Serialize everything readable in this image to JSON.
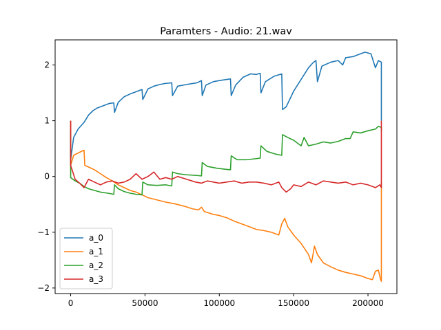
{
  "chart_data": {
    "type": "line",
    "title": "Paramters - Audio: 21.wav",
    "xlabel": "",
    "ylabel": "",
    "xlim": [
      -10450,
      219450
    ],
    "ylim": [
      -2.1,
      2.45
    ],
    "x_ticks": [
      0,
      50000,
      100000,
      150000,
      200000
    ],
    "x_tick_labels": [
      "0",
      "50000",
      "100000",
      "150000",
      "200000"
    ],
    "y_ticks": [
      -2,
      -1,
      0,
      1,
      2
    ],
    "y_tick_labels": [
      "−2",
      "−1",
      "0",
      "1",
      "2"
    ],
    "grid": false,
    "legend_position": "lower-left",
    "series": [
      {
        "name": "a_0",
        "color": "#1f77b4",
        "x": [
          0,
          0,
          2000,
          5000,
          9000,
          12000,
          15000,
          18000,
          22000,
          26000,
          29000,
          29500,
          32000,
          36000,
          40000,
          45000,
          48000,
          48500,
          52000,
          56000,
          60000,
          64000,
          68000,
          68500,
          72000,
          78000,
          85000,
          88000,
          88500,
          91000,
          96000,
          100000,
          105000,
          107500,
          108000,
          111000,
          116000,
          121000,
          125000,
          127500,
          128000,
          131000,
          137000,
          142000,
          142500,
          145000,
          150000,
          155000,
          160000,
          163000,
          165000,
          166000,
          169000,
          175000,
          180000,
          183000,
          185000,
          190000,
          195000,
          198000,
          202000,
          205000,
          207000,
          209000,
          209000
        ],
        "y": [
          1.0,
          0.3,
          0.7,
          0.85,
          0.97,
          1.1,
          1.18,
          1.23,
          1.27,
          1.31,
          1.32,
          1.15,
          1.33,
          1.43,
          1.48,
          1.53,
          1.56,
          1.38,
          1.57,
          1.62,
          1.65,
          1.67,
          1.68,
          1.45,
          1.62,
          1.65,
          1.68,
          1.72,
          1.45,
          1.64,
          1.7,
          1.72,
          1.74,
          1.75,
          1.45,
          1.64,
          1.78,
          1.84,
          1.83,
          1.85,
          1.5,
          1.7,
          1.8,
          1.84,
          1.2,
          1.25,
          1.53,
          1.74,
          1.95,
          2.04,
          2.08,
          1.7,
          1.98,
          2.05,
          2.08,
          2.0,
          2.13,
          2.15,
          2.2,
          2.23,
          2.2,
          1.95,
          2.08,
          2.05,
          1.0
        ]
      },
      {
        "name": "a_1",
        "color": "#ff7f0e",
        "x": [
          0,
          0,
          2000,
          5000,
          8000,
          9000,
          9500,
          12000,
          16000,
          20000,
          24000,
          28000,
          32000,
          36000,
          40000,
          44000,
          48000,
          52000,
          58000,
          64000,
          70000,
          76000,
          82000,
          86000,
          88000,
          90000,
          96000,
          100000,
          105000,
          110000,
          115000,
          120000,
          125000,
          130000,
          135000,
          140000,
          142000,
          144000,
          146000,
          150000,
          155000,
          160000,
          162000,
          164000,
          166000,
          170000,
          175000,
          180000,
          185000,
          190000,
          195000,
          200000,
          203000,
          205000,
          207000,
          208500,
          209000,
          209000
        ],
        "y": [
          1.0,
          0.2,
          0.38,
          0.42,
          0.46,
          0.47,
          0.2,
          0.17,
          0.12,
          0.05,
          -0.02,
          -0.08,
          -0.15,
          -0.2,
          -0.25,
          -0.28,
          -0.33,
          -0.38,
          -0.42,
          -0.46,
          -0.49,
          -0.53,
          -0.58,
          -0.6,
          -0.55,
          -0.63,
          -0.68,
          -0.7,
          -0.74,
          -0.8,
          -0.85,
          -0.9,
          -0.95,
          -0.97,
          -1.0,
          -1.05,
          -0.85,
          -0.75,
          -0.9,
          -1.05,
          -1.2,
          -1.4,
          -1.55,
          -1.25,
          -1.4,
          -1.55,
          -1.62,
          -1.68,
          -1.72,
          -1.75,
          -1.78,
          -1.83,
          -1.85,
          -1.7,
          -1.68,
          -1.85,
          -1.88,
          -0.1
        ]
      },
      {
        "name": "a_2",
        "color": "#2ca02c",
        "x": [
          0,
          0,
          3000,
          6000,
          9000,
          12000,
          16000,
          20000,
          25000,
          29000,
          29500,
          32000,
          36000,
          40000,
          44000,
          48000,
          48500,
          52000,
          58000,
          64000,
          68000,
          68500,
          72000,
          78000,
          84000,
          88000,
          88500,
          92000,
          98000,
          104000,
          107500,
          108000,
          112000,
          118000,
          125000,
          127500,
          128000,
          132000,
          138000,
          142000,
          142500,
          146000,
          150000,
          155000,
          157000,
          160000,
          165000,
          170000,
          175000,
          180000,
          185000,
          188000,
          190000,
          195000,
          200000,
          205000,
          207000,
          209000,
          209000
        ],
        "y": [
          0.8,
          -0.02,
          -0.08,
          -0.12,
          -0.18,
          -0.22,
          -0.25,
          -0.28,
          -0.3,
          -0.32,
          -0.15,
          -0.22,
          -0.27,
          -0.3,
          -0.32,
          -0.33,
          -0.1,
          -0.15,
          -0.16,
          -0.15,
          -0.17,
          0.08,
          0.05,
          0.03,
          0.02,
          0.01,
          0.25,
          0.18,
          0.15,
          0.13,
          0.12,
          0.37,
          0.3,
          0.3,
          0.32,
          0.33,
          0.55,
          0.45,
          0.4,
          0.38,
          0.75,
          0.7,
          0.65,
          0.55,
          0.7,
          0.55,
          0.58,
          0.62,
          0.6,
          0.63,
          0.68,
          0.68,
          0.8,
          0.78,
          0.82,
          0.85,
          0.9,
          0.88,
          0.82
        ]
      },
      {
        "name": "a_3",
        "color": "#d62728",
        "x": [
          0,
          0,
          3000,
          6000,
          9000,
          12000,
          16000,
          20000,
          24000,
          28000,
          32000,
          36000,
          40000,
          44000,
          48000,
          52000,
          56000,
          60000,
          64000,
          68000,
          72000,
          78000,
          84000,
          88000,
          92000,
          96000,
          100000,
          105000,
          110000,
          115000,
          120000,
          125000,
          130000,
          135000,
          140000,
          142000,
          145000,
          148000,
          150000,
          155000,
          160000,
          165000,
          170000,
          175000,
          180000,
          185000,
          190000,
          195000,
          200000,
          205000,
          208000,
          209000,
          209000
        ],
        "y": [
          1.0,
          0.2,
          -0.05,
          -0.12,
          -0.2,
          -0.05,
          -0.1,
          -0.15,
          -0.1,
          -0.08,
          -0.12,
          -0.1,
          -0.05,
          0.05,
          -0.05,
          0.0,
          0.08,
          -0.05,
          -0.02,
          -0.05,
          0.0,
          -0.05,
          -0.1,
          -0.12,
          -0.08,
          -0.1,
          -0.12,
          -0.1,
          -0.08,
          -0.12,
          -0.1,
          -0.1,
          -0.12,
          -0.15,
          -0.1,
          -0.2,
          -0.28,
          -0.22,
          -0.15,
          -0.18,
          -0.1,
          -0.15,
          -0.08,
          -0.1,
          -0.12,
          -0.1,
          -0.15,
          -0.12,
          -0.15,
          -0.2,
          -0.15,
          -0.2,
          1.0
        ]
      }
    ]
  }
}
